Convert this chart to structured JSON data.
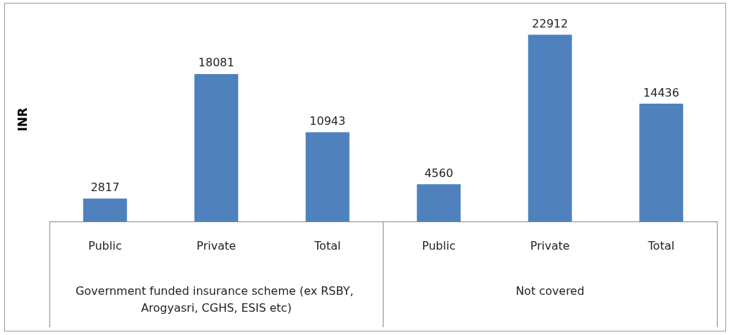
{
  "chart_data": {
    "type": "bar",
    "ylabel": "INR",
    "categories": [
      "Public",
      "Private",
      "Total",
      "Public",
      "Private",
      "Total"
    ],
    "values": [
      2817,
      18081,
      10943,
      4560,
      22912,
      14436
    ],
    "color": "#4f81bd",
    "data_labels": true,
    "tick_labels": "x",
    "grid": false,
    "annotations": [
      "Government funded insurance scheme (ex RSBY, Arogyasri, CGHS, ESIS etc)",
      "Not covered"
    ]
  }
}
